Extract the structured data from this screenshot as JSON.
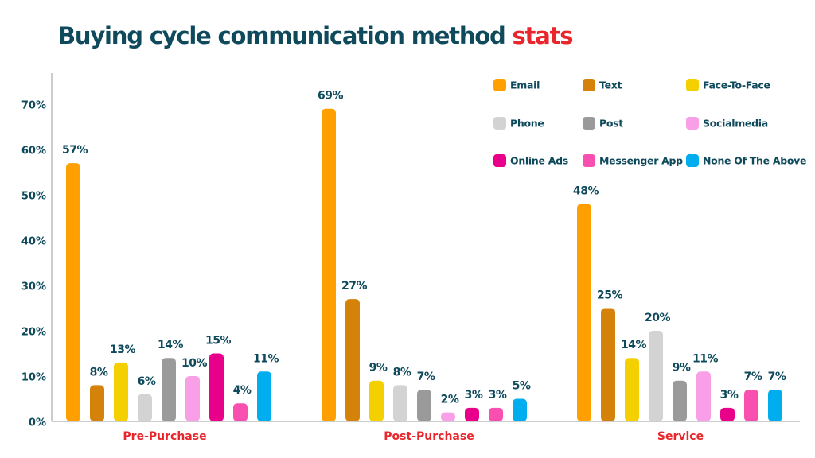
{
  "title": {
    "main": "Buying cycle communication method ",
    "accent": "stats"
  },
  "colors": {
    "title": "#0e4a5c",
    "accent": "#e8262b",
    "axis_text": "#0e4a5c",
    "category_text": "#e8262b"
  },
  "chart_data": {
    "type": "bar",
    "title": "Buying cycle communication method stats",
    "categories": [
      "Pre-Purchase",
      "Post-Purchase",
      "Service"
    ],
    "ylim": [
      0,
      70
    ],
    "yticks": [
      "0%",
      "10%",
      "20%",
      "30%",
      "40%",
      "50%",
      "60%",
      "70%"
    ],
    "ytick_values": [
      0,
      10,
      20,
      30,
      40,
      50,
      60,
      70
    ],
    "grid": false,
    "legend_position": "top-right",
    "unit": "%",
    "series": [
      {
        "name": "Email",
        "color": "#ff9f00",
        "values": [
          57,
          69,
          48
        ]
      },
      {
        "name": "Text",
        "color": "#d4820a",
        "values": [
          8,
          27,
          25
        ]
      },
      {
        "name": "Face-To-Face",
        "color": "#f5d000",
        "values": [
          13,
          9,
          14
        ]
      },
      {
        "name": "Phone",
        "color": "#d3d3d3",
        "values": [
          6,
          8,
          20
        ]
      },
      {
        "name": "Post",
        "color": "#9a9a9a",
        "values": [
          14,
          7,
          9
        ]
      },
      {
        "name": "Socialmedia",
        "color": "#f99fe8",
        "values": [
          10,
          2,
          11
        ]
      },
      {
        "name": "Online Ads",
        "color": "#e8008a",
        "values": [
          15,
          3,
          3
        ]
      },
      {
        "name": "Messenger App",
        "color": "#f84fb0",
        "values": [
          4,
          3,
          7
        ]
      },
      {
        "name": "None Of The Above",
        "color": "#00aeef",
        "values": [
          11,
          5,
          7
        ]
      }
    ]
  }
}
